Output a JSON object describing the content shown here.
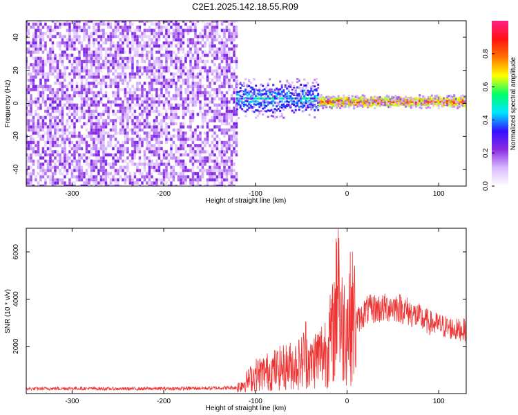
{
  "title": "C2E1.2025.142.18.55.R09",
  "colors": {
    "snr_line": "#ee3333",
    "spectrogram_low": "#f2eaff",
    "spectrogram_mid": "#7a1cf0",
    "colorbar_stops": [
      "#ffffff",
      "#d8b8ff",
      "#8a2be2",
      "#3311ff",
      "#00e5ff",
      "#00ff66",
      "#ffff00",
      "#ff7700",
      "#ff1111",
      "#ff2288"
    ]
  },
  "chart_data": [
    {
      "type": "heatmap",
      "name": "spectrogram",
      "xlabel": "Height of straight line (km)",
      "ylabel": "Frequency (Hz)",
      "xlim": [
        -350,
        130
      ],
      "ylim": [
        -50,
        50
      ],
      "xticks": [
        -300,
        -200,
        -100,
        0,
        100
      ],
      "yticks": [
        -40,
        -20,
        0,
        20,
        40
      ],
      "grid": false,
      "description_regions": [
        {
          "x_range": [
            -350,
            -120
          ],
          "freq_range": [
            -50,
            50
          ],
          "amplitude": [
            0.05,
            0.25
          ]
        },
        {
          "x_range": [
            -120,
            -30
          ],
          "freq_center": 3,
          "freq_halfwidth": 6,
          "amplitude": [
            0.3,
            0.55
          ]
        },
        {
          "x_range": [
            -30,
            130
          ],
          "freq_center": 1,
          "freq_halfwidth": 2,
          "amplitude": [
            0.6,
            1.0
          ]
        }
      ],
      "colorbar": {
        "label": "Normalized spectral amplitude",
        "range": [
          0.0,
          1.0
        ],
        "ticks": [
          0.0,
          0.2,
          0.4,
          0.6,
          0.8
        ]
      }
    },
    {
      "type": "line",
      "name": "snr",
      "xlabel": "Height of straight line (km)",
      "ylabel": "SNR (10 * v/v)",
      "xlim": [
        -350,
        130
      ],
      "ylim": [
        0,
        7000
      ],
      "xticks": [
        -300,
        -200,
        -100,
        0,
        100
      ],
      "yticks": [
        2000,
        4000,
        6000
      ],
      "grid": false,
      "series": [
        {
          "x": [
            -350,
            -300,
            -250,
            -200,
            -150,
            -120,
            -110,
            -100,
            -90,
            -80,
            -70,
            -60,
            -50,
            -45,
            -40,
            -35,
            -30,
            -25,
            -20,
            -15,
            -12,
            -10,
            -8,
            -5,
            0,
            5,
            10,
            15,
            20,
            30,
            40,
            50,
            60,
            70,
            80,
            90,
            100,
            110,
            120,
            130
          ],
          "y": [
            200,
            220,
            200,
            210,
            230,
            250,
            500,
            800,
            900,
            1000,
            1100,
            1200,
            1300,
            1800,
            1200,
            1500,
            1600,
            1800,
            2100,
            2600,
            3500,
            7000,
            3200,
            2800,
            3000,
            3300,
            3100,
            3200,
            3500,
            3600,
            3600,
            3700,
            3600,
            3400,
            3200,
            3000,
            2900,
            2800,
            2700,
            2700
          ]
        }
      ]
    }
  ]
}
